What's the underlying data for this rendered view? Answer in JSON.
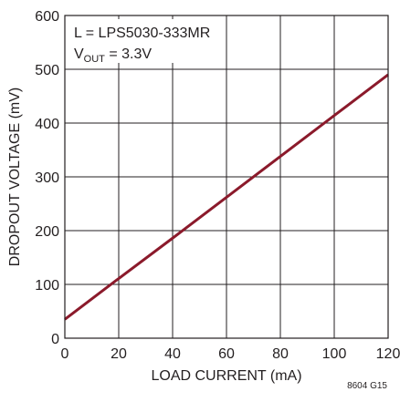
{
  "chart_data": {
    "type": "line",
    "title": "",
    "xlabel": "LOAD CURRENT (mA)",
    "ylabel": "DROPOUT VOLTAGE (mV)",
    "xlim": [
      0,
      120
    ],
    "ylim": [
      0,
      600
    ],
    "x_ticks": [
      0,
      20,
      40,
      60,
      80,
      100,
      120
    ],
    "y_ticks": [
      0,
      100,
      200,
      300,
      400,
      500,
      600
    ],
    "x_tick_labels": [
      "0",
      "20",
      "40",
      "60",
      "80",
      "100",
      "120"
    ],
    "y_tick_labels": [
      "0",
      "100",
      "200",
      "300",
      "400",
      "500",
      "600"
    ],
    "grid": true,
    "legend": "none",
    "series": [
      {
        "color": "#8b1a2b",
        "x": [
          0,
          20,
          40,
          60,
          80,
          100,
          120
        ],
        "y": [
          35,
          111,
          186,
          262,
          338,
          414,
          490
        ]
      }
    ],
    "annotations": {
      "inductor": "L = LPS5030-333MR",
      "vout_prefix": "V",
      "vout_subscript": "OUT",
      "vout_value": " = 3.3V"
    },
    "figure_code": "8604 G15"
  }
}
